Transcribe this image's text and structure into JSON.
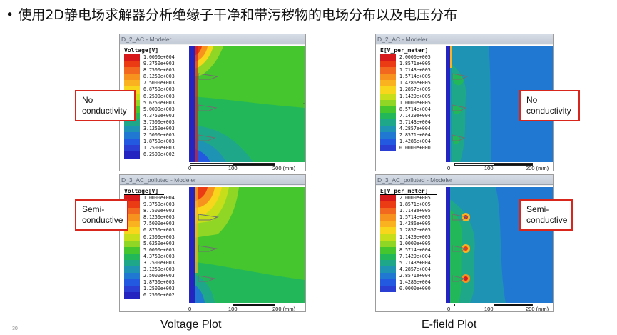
{
  "headline": {
    "bullet": "•",
    "text": "使用2D静电场求解器分析绝缘子干净和带污秽物的电场分布以及电压分布"
  },
  "legends": {
    "voltage": {
      "title": "Voltage[V]",
      "values": [
        "1.0000e+004",
        "9.3750e+003",
        "8.7500e+003",
        "8.1250e+003",
        "7.5000e+003",
        "6.8750e+003",
        "6.2500e+003",
        "5.6250e+003",
        "5.0000e+003",
        "4.3750e+003",
        "3.7500e+003",
        "3.1250e+003",
        "2.5000e+003",
        "1.8750e+003",
        "1.2500e+003",
        "6.2500e+002"
      ]
    },
    "efield": {
      "title": "E[V_per_meter]",
      "values": [
        "2.0000e+005",
        "1.8571e+005",
        "1.7143e+005",
        "1.5714e+005",
        "1.4286e+005",
        "1.2857e+005",
        "1.1429e+005",
        "1.0000e+005",
        "8.5714e+004",
        "7.1429e+004",
        "5.7143e+004",
        "4.2857e+004",
        "2.8571e+004",
        "1.4286e+004",
        "0.0000e+000"
      ]
    }
  },
  "colors": {
    "voltage_scale": [
      "#d7191c",
      "#ea3b14",
      "#f2681e",
      "#f8921f",
      "#fbb220",
      "#f7d61c",
      "#c6df1a",
      "#8fd724",
      "#45c52e",
      "#22b85a",
      "#1ea788",
      "#1f93b4",
      "#2178d3",
      "#2359e0",
      "#2a3ed4",
      "#2424c0"
    ],
    "efield_scale": [
      "#d7191c",
      "#ea3b14",
      "#f2681e",
      "#f8921f",
      "#fbb220",
      "#f7d61c",
      "#c6df1a",
      "#8fd724",
      "#45c52e",
      "#22b85a",
      "#1ea788",
      "#1f93b4",
      "#2178d3",
      "#2359e0",
      "#2a3ed4"
    ],
    "callout_border": "#d9261c"
  },
  "panels": {
    "top_left": {
      "title": "D_2_AC - Modeler"
    },
    "top_right": {
      "title": "D_2_AC - Modeler"
    },
    "bottom_left": {
      "title": "D_3_AC_polluted - Modeler"
    },
    "bottom_right": {
      "title": "D_3_AC_polluted - Modeler"
    }
  },
  "ruler": {
    "start": "0",
    "mid": "100",
    "end": "200 (mm)"
  },
  "callouts": {
    "top_left": {
      "line1": "No",
      "line2": "conductivity"
    },
    "top_right": {
      "line1": "No",
      "line2": "conductivity"
    },
    "bottom_left": {
      "line1": "Semi-",
      "line2": "conductive"
    },
    "bottom_right": {
      "line1": "Semi-",
      "line2": "conductive"
    }
  },
  "captions": {
    "left": "Voltage Plot",
    "right": "E-field Plot"
  },
  "page_number": "30"
}
